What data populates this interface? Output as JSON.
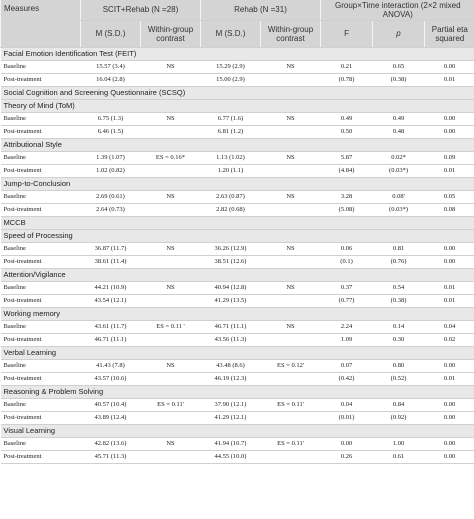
{
  "header": {
    "measures": "Measures",
    "groups": [
      "SCIT+Rehab (N =28)",
      "Rehab (N =31)",
      "Group×Time interaction (2×2 mixed ANOVA)"
    ],
    "subheaders": [
      "M (S.D.)",
      "Within-group contrast",
      "M (S.D.)",
      "Within-group contrast",
      "F",
      "p",
      "Partial eta squared"
    ]
  },
  "rows": [
    {
      "section": "Facial Emotion Identification Test (FEIT)"
    },
    {
      "cells": [
        "Baseline",
        "15.57 (3.4)",
        "NS",
        "15.29 (2.9)",
        "NS",
        "0.21",
        "0.65",
        "0.00"
      ]
    },
    {
      "cells": [
        "Post-treatment",
        "16.04 (2.8)",
        null,
        "15.00 (2.9)",
        null,
        "(0.78)",
        "(0.38)",
        "0.01"
      ]
    },
    {
      "section": "Social Cognition and Screening Questionnaire (SCSQ)"
    },
    {
      "section": "Theory of Mind (ToM)"
    },
    {
      "cells": [
        "Baseline",
        "6.75 (1.3)",
        "NS",
        "6.77 (1.6)",
        "NS",
        "0.49",
        "0.49",
        "0.00"
      ]
    },
    {
      "cells": [
        "Post-treatment",
        "6.46 (1.5)",
        null,
        "6.81 (1.2)",
        null,
        "0.50",
        "0.48",
        "0.00"
      ]
    },
    {
      "section": "Attributional Style"
    },
    {
      "cells": [
        "Baseline",
        "1.39 (1.07)",
        "ES = 0.16*",
        "1.13 (1.02)",
        "NS",
        "5.87",
        "0.02*",
        "0.09"
      ]
    },
    {
      "cells": [
        "Post-treatment",
        "1.02 (0.82)",
        null,
        "1.20 (1.1)",
        null,
        "(4.84)",
        "(0.03*)",
        "0.01"
      ]
    },
    {
      "section": "Jump-to-Conclusion"
    },
    {
      "cells": [
        "Baseline",
        "2.69 (0.61)",
        "NS",
        "2.63 (0.87)",
        "NS",
        "3.28",
        "0.08'",
        "0.05"
      ]
    },
    {
      "cells": [
        "Post-treatment",
        "2.64 (0.73)",
        null,
        "2.82 (0.68)",
        null,
        "(5.08)",
        "(0.03*)",
        "0.08"
      ]
    },
    {
      "section": "MCCB"
    },
    {
      "section": "Speed of Processing"
    },
    {
      "cells": [
        "Baseline",
        "36.87 (11.7)",
        "NS",
        "36.26 (12.9)",
        "NS",
        "0.06",
        "0.81",
        "0.00"
      ]
    },
    {
      "cells": [
        "Post-treatment",
        "38.61 (11.4)",
        null,
        "38.51 (12.6)",
        null,
        "(0.1)",
        "(0.76)",
        "0.00"
      ]
    },
    {
      "section": "Attention/Vigilance"
    },
    {
      "cells": [
        "Baseline",
        "44.21 (10.9)",
        "NS",
        "40.94 (12.8)",
        "NS",
        "0.37",
        "0.54",
        "0.01"
      ]
    },
    {
      "cells": [
        "Post-treatment",
        "43.54 (12.1)",
        null,
        "41.29 (13.5)",
        null,
        "(0.77)",
        "(0.38)",
        "0.01"
      ]
    },
    {
      "section": "Working memory"
    },
    {
      "cells": [
        "Baseline",
        "43.61 (11.7)",
        "ES = 0.11 '",
        "46.71 (11.1)",
        "NS",
        "2.24",
        "0.14",
        "0.04"
      ]
    },
    {
      "cells": [
        "Post-treatment",
        "46.71 (11.1)",
        null,
        "43.56 (11.3)",
        null,
        "1.09",
        "0.30",
        "0.02"
      ]
    },
    {
      "section": "Verbal Learning"
    },
    {
      "cells": [
        "Baseline",
        "41.43 (7.8)",
        "NS",
        "43.48 (8.6)",
        "ES = 0.12'",
        "0.07",
        "0.80",
        "0.00"
      ]
    },
    {
      "cells": [
        "Post-treatment",
        "43.57 (10.6)",
        null,
        "46.19 (12.3)",
        null,
        "(0.42)",
        "(0.52)",
        "0.01"
      ]
    },
    {
      "section": "Reasoning & Problem Solving"
    },
    {
      "cells": [
        "Baseline",
        "40.57 (10.4)",
        "ES = 0.11'",
        "37.90 (12.1)",
        "ES = 0.11'",
        "0.04",
        "0.84",
        "0.00"
      ]
    },
    {
      "cells": [
        "Post-treatment",
        "43.89 (12.4)",
        null,
        "41.29 (12.1)",
        null,
        "(0.01)",
        "(0.92)",
        "0.00"
      ]
    },
    {
      "section": "Visual Learning"
    },
    {
      "cells": [
        "Baseline",
        "42.82 (13.6)",
        "NS",
        "41.94 (10.7)",
        "ES = 0.11'",
        "0.00",
        "1.00",
        "0.00"
      ]
    },
    {
      "cells": [
        "Post-treatment",
        "45.71 (11.3)",
        null,
        "44.55 (10.0)",
        null,
        "0.26",
        "0.61",
        "0.00"
      ]
    }
  ]
}
